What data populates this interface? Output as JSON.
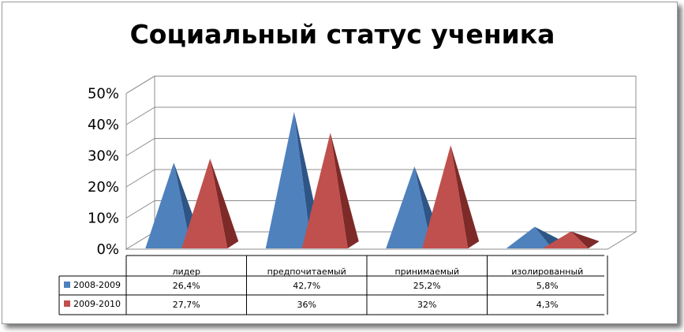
{
  "chart_data": {
    "type": "bar",
    "shape": "3d-pyramid",
    "title": "Социальный статус ученика",
    "categories": [
      "лидер",
      "предпочитаемый",
      "принимаемый",
      "изолированный"
    ],
    "series": [
      {
        "name": "2008-2009",
        "values": [
          26.4,
          42.7,
          25.2,
          5.8
        ],
        "labels": [
          "26,4%",
          "42,7%",
          "25,2%",
          "5,8%"
        ],
        "color": "#4F81BD",
        "shade": "#2E5586"
      },
      {
        "name": "2009-2010",
        "values": [
          27.7,
          36,
          32,
          4.3
        ],
        "labels": [
          "27,7%",
          "36%",
          "32%",
          "4,3%"
        ],
        "color": "#C0504D",
        "shade": "#7E2A28"
      }
    ],
    "y_ticks": [
      "0%",
      "10%",
      "20%",
      "30%",
      "40%",
      "50%"
    ],
    "ylim": [
      0,
      50
    ],
    "grid": true,
    "legend": "data-table"
  }
}
